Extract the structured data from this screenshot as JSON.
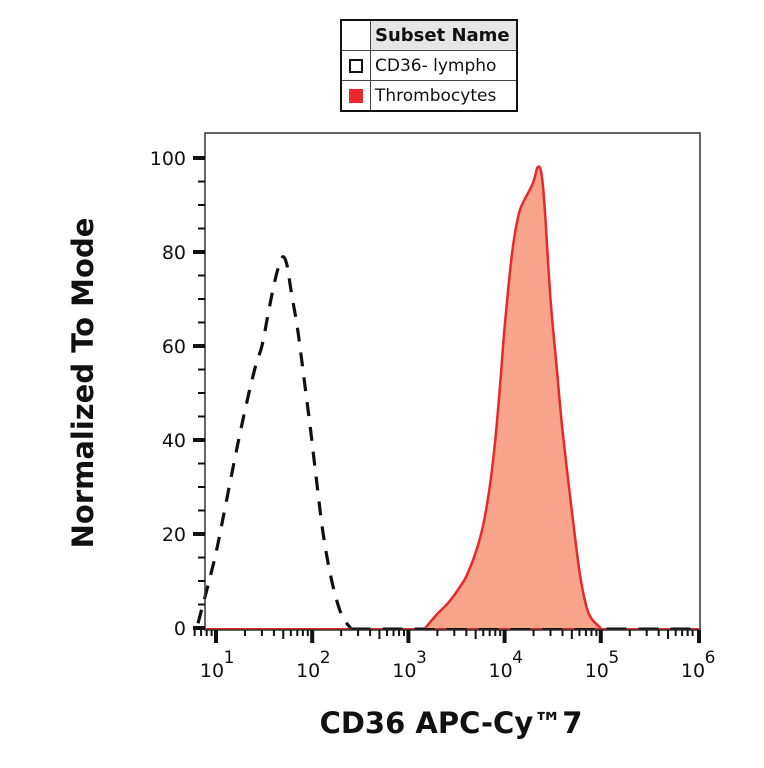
{
  "chart_data": {
    "type": "area",
    "subtype": "flow cytometry histogram overlay",
    "title": "",
    "xlabel": "CD36 APC-Cy™7",
    "ylabel": "Normalized To Mode",
    "x_scale": "log",
    "xlim": [
      6,
      1000000
    ],
    "ylim": [
      0,
      100
    ],
    "x_ticks": [
      {
        "label_base": "10",
        "label_exp": "1",
        "value": 10
      },
      {
        "label_base": "10",
        "label_exp": "2",
        "value": 100
      },
      {
        "label_base": "10",
        "label_exp": "3",
        "value": 1000
      },
      {
        "label_base": "10",
        "label_exp": "4",
        "value": 10000
      },
      {
        "label_base": "10",
        "label_exp": "5",
        "value": 100000
      },
      {
        "label_base": "10",
        "label_exp": "6",
        "value": 1000000
      }
    ],
    "y_ticks": [
      "0",
      "20",
      "40",
      "60",
      "80",
      "100"
    ],
    "grid": false,
    "legend": {
      "position": "top-center",
      "header": "Subset Name",
      "entries": [
        {
          "name": "CD36- lympho",
          "style": "dashed black outline",
          "color": "#111111"
        },
        {
          "name": "Thrombocytes",
          "style": "filled red",
          "color": "#e8282b",
          "fill": "#f7a48b"
        }
      ]
    },
    "series": [
      {
        "name": "CD36- lympho",
        "style": "dashed",
        "color": "#111111",
        "x": [
          6.5,
          8,
          10,
          12,
          15,
          18,
          22,
          26,
          30,
          35,
          40,
          45,
          50,
          55,
          60,
          70,
          80,
          95,
          110,
          130,
          160,
          200,
          250
        ],
        "y": [
          1,
          8,
          16,
          24,
          34,
          42,
          50,
          56,
          60,
          67,
          73,
          77,
          79,
          77,
          72,
          64,
          55,
          43,
          32,
          20,
          10,
          3,
          0
        ]
      },
      {
        "name": "Thrombocytes",
        "style": "filled",
        "color": "#e8282b",
        "fill": "#f7a48b",
        "x": [
          1500,
          2000,
          2500,
          3000,
          3500,
          4000,
          5000,
          6000,
          7000,
          8000,
          9000,
          10000,
          12000,
          14000,
          16000,
          18000,
          20000,
          22000,
          24000,
          26000,
          30000,
          35000,
          40000,
          50000,
          60000,
          70000,
          80000,
          100000
        ],
        "y": [
          0,
          3,
          5,
          7,
          9,
          11,
          16,
          22,
          30,
          40,
          52,
          64,
          80,
          88,
          91,
          93,
          95,
          98,
          97,
          90,
          70,
          55,
          42,
          25,
          12,
          5,
          2,
          0
        ]
      }
    ]
  }
}
